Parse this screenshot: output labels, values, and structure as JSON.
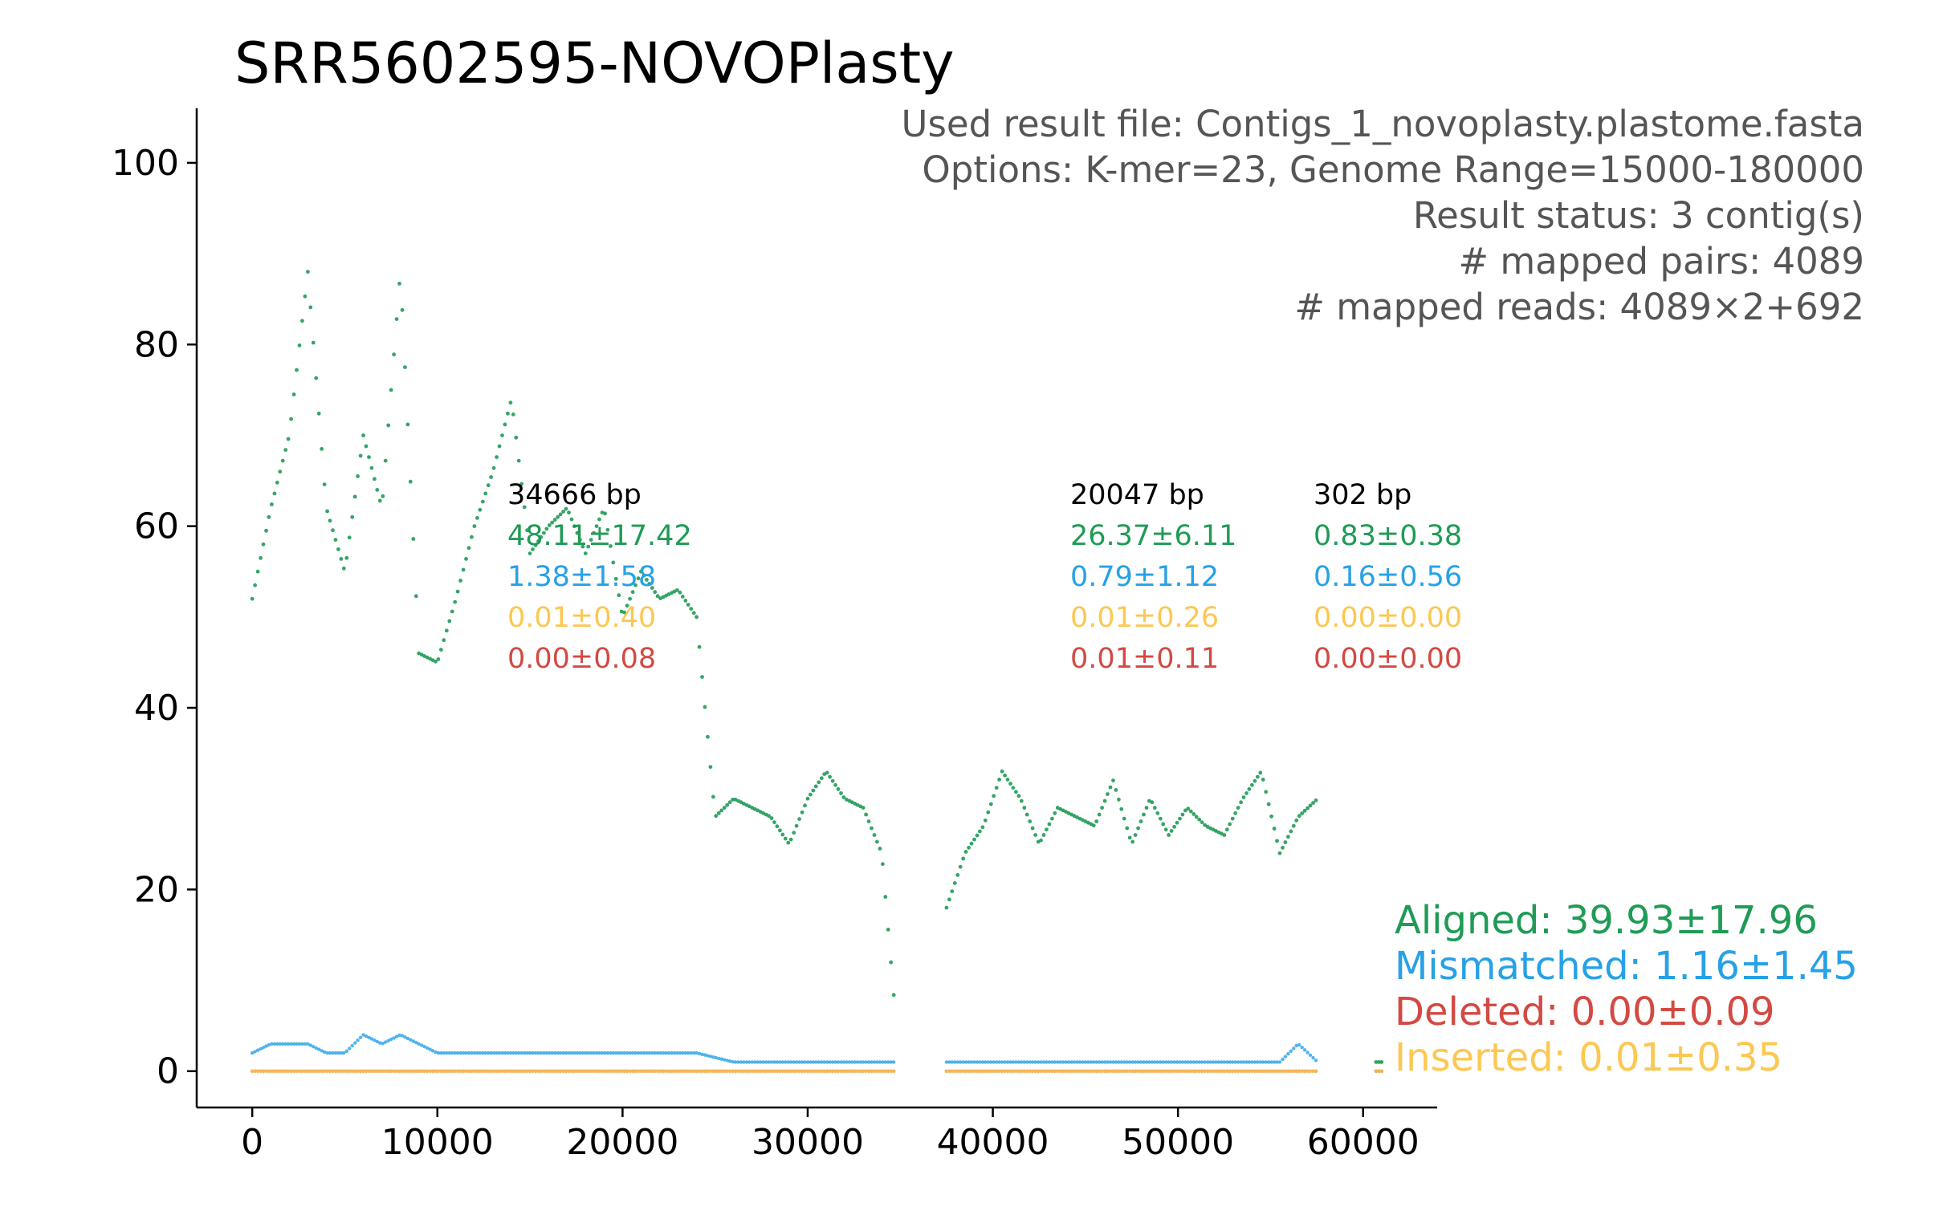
{
  "chart_data": {
    "type": "scatter",
    "title": "SRR5602595-NOVOPlasty",
    "xlabel": "",
    "ylabel": "",
    "xlim": [
      -3000,
      64000
    ],
    "ylim": [
      -4,
      106
    ],
    "x_ticks": [
      0,
      10000,
      20000,
      30000,
      40000,
      50000,
      60000
    ],
    "y_ticks": [
      0,
      20,
      40,
      60,
      80,
      100
    ],
    "x_tick_labels": [
      "0",
      "10000",
      "20000",
      "30000",
      "40000",
      "50000",
      "60000"
    ],
    "y_tick_labels": [
      "0",
      "20",
      "40",
      "60",
      "80",
      "100"
    ],
    "info_lines": [
      "Used result file: Contigs_1_novoplasty.plastome.fasta",
      "Options: K-mer=23, Genome Range=15000-180000",
      "Result status: 3 contig(s)",
      "# mapped pairs: 4089",
      "# mapped reads: 4089×2+692"
    ],
    "contigs": [
      {
        "length_label": "34666 bp",
        "x_start": 0,
        "x_end": 34666,
        "aligned": "48.11±17.42",
        "mismatched": "1.38±1.58",
        "inserted": "0.01±0.40",
        "deleted": "0.00±0.08"
      },
      {
        "length_label": "20047 bp",
        "x_start": 37500,
        "x_end": 57547,
        "aligned": "26.37±6.11",
        "mismatched": "0.79±1.12",
        "inserted": "0.01±0.26",
        "deleted": "0.01±0.11"
      },
      {
        "length_label": "302 bp",
        "x_start": 60700,
        "x_end": 61002,
        "aligned": "0.83±0.38",
        "mismatched": "0.16±0.56",
        "inserted": "0.00±0.00",
        "deleted": "0.00±0.00"
      }
    ],
    "legend": [
      {
        "label": "Aligned: 39.93±17.96",
        "color": "#1f9b55"
      },
      {
        "label": "Mismatched: 1.16±1.45",
        "color": "#27a1e6"
      },
      {
        "label": "Deleted: 0.00±0.09",
        "color": "#d24a43"
      },
      {
        "label": "Inserted: 0.01±0.35",
        "color": "#fcc853"
      }
    ],
    "colors": {
      "aligned": "#1f9b55",
      "mismatched": "#27a1e6",
      "deleted": "#d24a43",
      "inserted": "#fcc853",
      "length_label": "#000000",
      "info_text": "#555555"
    },
    "series": [
      {
        "name": "Aligned",
        "key": "aligned",
        "x": [
          0,
          1000,
          2000,
          3000,
          4000,
          5000,
          6000,
          7000,
          8000,
          9000,
          10000,
          11000,
          12000,
          13000,
          14000,
          15000,
          16000,
          17000,
          18000,
          19000,
          20000,
          21000,
          22000,
          23000,
          24000,
          25000,
          26000,
          27000,
          28000,
          29000,
          30000,
          31000,
          32000,
          33000,
          34000,
          34666,
          37500,
          38500,
          39500,
          40500,
          41500,
          42500,
          43500,
          44500,
          45500,
          46500,
          47500,
          48500,
          49500,
          50500,
          51500,
          52500,
          53500,
          54500,
          55500,
          56500,
          57547,
          60700,
          61002
        ],
        "y": [
          52,
          62,
          70,
          88,
          62,
          55,
          70,
          62,
          88,
          46,
          45,
          52,
          60,
          66,
          74,
          57,
          60,
          62,
          57,
          62,
          50,
          55,
          52,
          53,
          50,
          28,
          30,
          29,
          28,
          25,
          30,
          33,
          30,
          29,
          24,
          8,
          18,
          24,
          27,
          33,
          30,
          25,
          29,
          28,
          27,
          32,
          25,
          30,
          26,
          29,
          27,
          26,
          30,
          33,
          24,
          28,
          30,
          1,
          1
        ]
      },
      {
        "name": "Mismatched",
        "key": "mismatched",
        "x": [
          0,
          1000,
          2000,
          3000,
          4000,
          5000,
          6000,
          7000,
          8000,
          9000,
          10000,
          12000,
          14000,
          16000,
          18000,
          20000,
          22000,
          24000,
          26000,
          28000,
          30000,
          32000,
          34000,
          34666,
          37500,
          39500,
          41500,
          43500,
          45500,
          47500,
          49500,
          51500,
          53500,
          55500,
          56500,
          57547,
          60700,
          61002
        ],
        "y": [
          2,
          3,
          3,
          3,
          2,
          2,
          4,
          3,
          4,
          3,
          2,
          2,
          2,
          2,
          2,
          2,
          2,
          2,
          1,
          1,
          1,
          1,
          1,
          1,
          1,
          1,
          1,
          1,
          1,
          1,
          1,
          1,
          1,
          1,
          3,
          1,
          0,
          0
        ]
      },
      {
        "name": "Deleted",
        "key": "deleted",
        "x": [
          0,
          34666,
          37500,
          57547,
          60700,
          61002
        ],
        "y": [
          0,
          0,
          0,
          0,
          0,
          0
        ]
      },
      {
        "name": "Inserted",
        "key": "inserted",
        "x": [
          0,
          34666,
          37500,
          57547,
          60700,
          61002
        ],
        "y": [
          0,
          0,
          0,
          0,
          0,
          0
        ]
      }
    ]
  }
}
